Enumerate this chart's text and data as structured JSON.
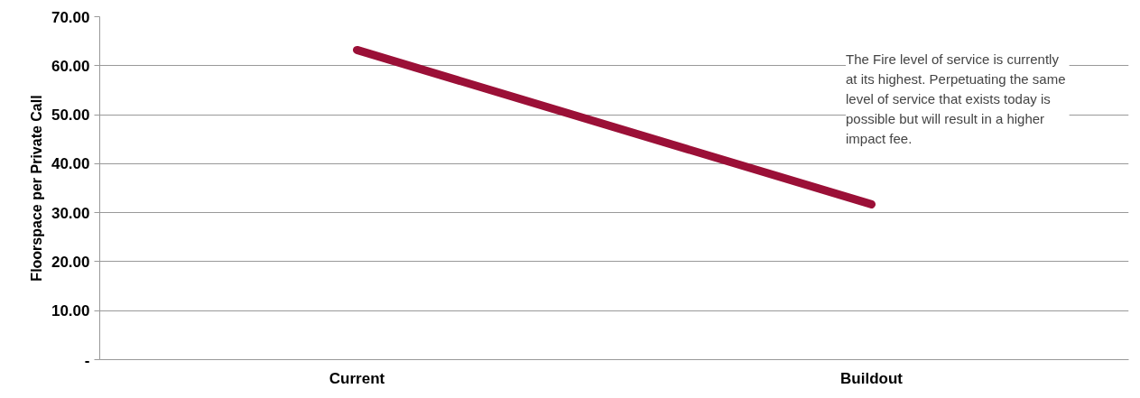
{
  "chart_data": {
    "type": "line",
    "ylabel": "Floorspace per Private Call",
    "categories": [
      "Current",
      "Buildout"
    ],
    "series": [
      {
        "color": "#9b1037",
        "values": [
          63.2,
          31.7
        ]
      }
    ],
    "ylim": [
      0,
      70
    ],
    "yticks": [
      {
        "value": 0,
        "label": "-"
      },
      {
        "value": 10,
        "label": "10.00"
      },
      {
        "value": 20,
        "label": "20.00"
      },
      {
        "value": 30,
        "label": "30.00"
      },
      {
        "value": 40,
        "label": "40.00"
      },
      {
        "value": 50,
        "label": "50.00"
      },
      {
        "value": 60,
        "label": "60.00"
      },
      {
        "value": 70,
        "label": "70.00"
      }
    ],
    "grid": "y",
    "marker": "none",
    "line_style": "solid",
    "annotations": [
      "The Fire level of service is currently at its highest.  Perpetuating the same level of service that exists today is possible but will result in a higher impact fee."
    ]
  }
}
